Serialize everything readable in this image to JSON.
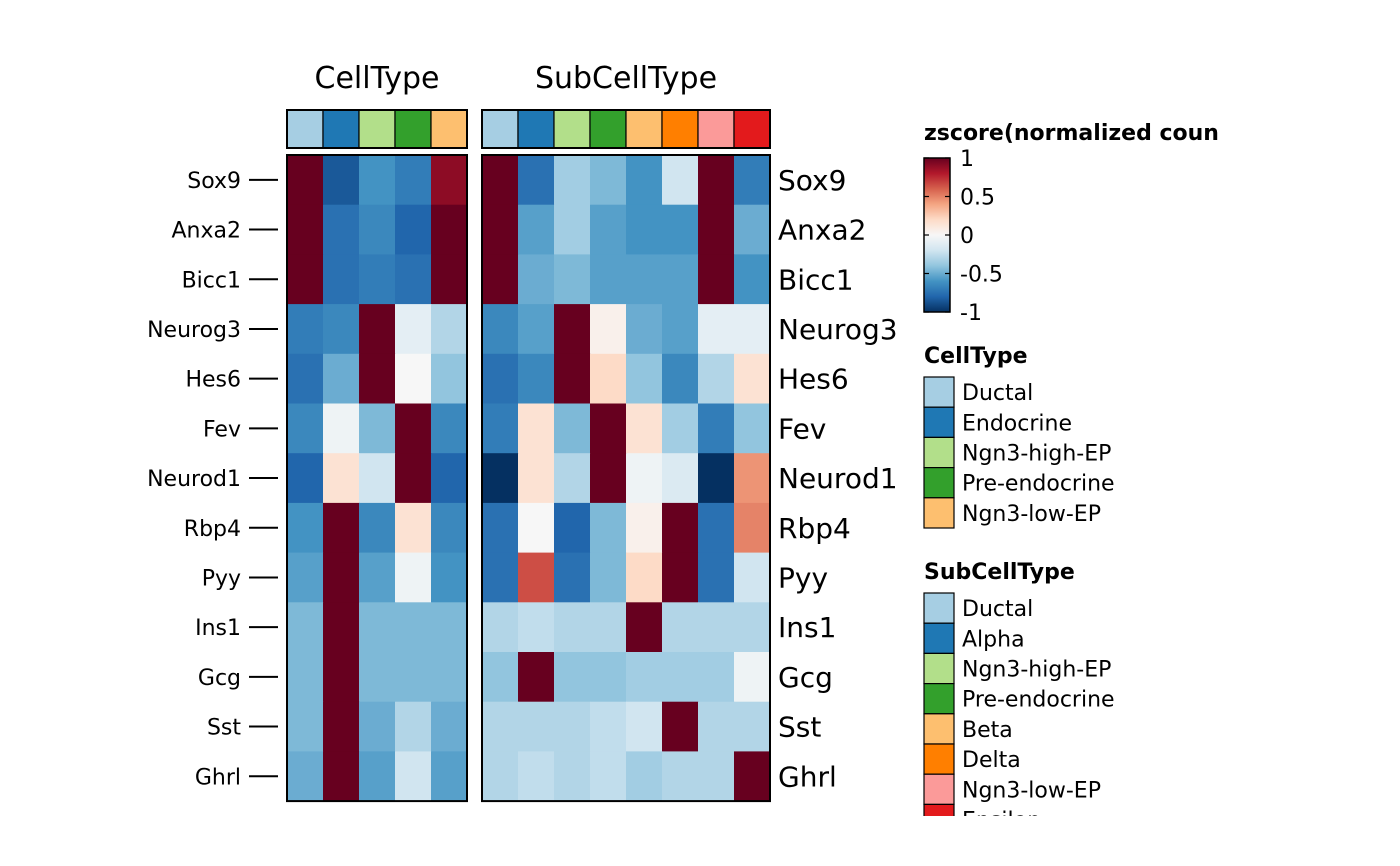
{
  "chart_data": {
    "type": "heatmap",
    "rows": [
      "Sox9",
      "Anxa2",
      "Bicc1",
      "Neurog3",
      "Hes6",
      "Fev",
      "Neurod1",
      "Rbp4",
      "Pyy",
      "Ins1",
      "Gcg",
      "Sst",
      "Ghrl"
    ],
    "panels": [
      {
        "title": "CellType",
        "columns": [
          "Ductal",
          "Endocrine",
          "Ngn3-high-EP",
          "Pre-endocrine",
          "Ngn3-low-EP"
        ],
        "annotation_colors": [
          "#A6CEE3",
          "#1F78B4",
          "#B2DF8A",
          "#33A02C",
          "#FDBF6F"
        ],
        "values": [
          [
            1.0,
            -0.85,
            -0.6,
            -0.7,
            0.9
          ],
          [
            1.0,
            -0.75,
            -0.65,
            -0.8,
            1.0
          ],
          [
            1.0,
            -0.75,
            -0.7,
            -0.75,
            1.0
          ],
          [
            -0.7,
            -0.65,
            1.0,
            -0.1,
            -0.3
          ],
          [
            -0.75,
            -0.5,
            1.0,
            0.0,
            -0.4
          ],
          [
            -0.65,
            -0.05,
            -0.45,
            1.0,
            -0.65
          ],
          [
            -0.8,
            0.15,
            -0.2,
            1.0,
            -0.8
          ],
          [
            -0.6,
            1.0,
            -0.65,
            0.15,
            -0.65
          ],
          [
            -0.55,
            1.0,
            -0.55,
            -0.05,
            -0.6
          ],
          [
            -0.45,
            1.0,
            -0.45,
            -0.45,
            -0.45
          ],
          [
            -0.45,
            1.0,
            -0.45,
            -0.45,
            -0.45
          ],
          [
            -0.45,
            1.0,
            -0.5,
            -0.3,
            -0.5
          ],
          [
            -0.5,
            1.0,
            -0.55,
            -0.2,
            -0.55
          ]
        ]
      },
      {
        "title": "SubCellType",
        "columns": [
          "Ductal",
          "Alpha",
          "Ngn3-high-EP",
          "Pre-endocrine",
          "Beta",
          "Delta",
          "Ngn3-low-EP",
          "Epsilon"
        ],
        "annotation_colors": [
          "#A6CEE3",
          "#1F78B4",
          "#B2DF8A",
          "#33A02C",
          "#FDBF6F",
          "#FF7F00",
          "#FB9A99",
          "#E31A1C"
        ],
        "values": [
          [
            1.0,
            -0.75,
            -0.35,
            -0.45,
            -0.6,
            -0.2,
            1.0,
            -0.7
          ],
          [
            1.0,
            -0.55,
            -0.35,
            -0.55,
            -0.6,
            -0.6,
            1.0,
            -0.5
          ],
          [
            1.0,
            -0.5,
            -0.45,
            -0.55,
            -0.55,
            -0.55,
            1.0,
            -0.6
          ],
          [
            -0.65,
            -0.55,
            1.0,
            0.05,
            -0.5,
            -0.55,
            -0.1,
            -0.1
          ],
          [
            -0.75,
            -0.65,
            1.0,
            0.2,
            -0.4,
            -0.65,
            -0.3,
            0.15
          ],
          [
            -0.7,
            0.15,
            -0.45,
            1.0,
            0.15,
            -0.35,
            -0.7,
            -0.4
          ],
          [
            -1.0,
            0.15,
            -0.3,
            1.0,
            -0.05,
            -0.15,
            -1.0,
            0.45
          ],
          [
            -0.75,
            0.0,
            -0.8,
            -0.45,
            0.05,
            1.0,
            -0.75,
            0.5
          ],
          [
            -0.75,
            0.65,
            -0.75,
            -0.45,
            0.2,
            1.0,
            -0.75,
            -0.2
          ],
          [
            -0.3,
            -0.25,
            -0.3,
            -0.3,
            1.0,
            -0.3,
            -0.3,
            -0.3
          ],
          [
            -0.4,
            1.0,
            -0.4,
            -0.4,
            -0.35,
            -0.35,
            -0.35,
            -0.05
          ],
          [
            -0.3,
            -0.3,
            -0.3,
            -0.25,
            -0.2,
            1.0,
            -0.3,
            -0.3
          ],
          [
            -0.3,
            -0.25,
            -0.3,
            -0.25,
            -0.35,
            -0.3,
            -0.3,
            1.0
          ]
        ]
      }
    ],
    "colorbar": {
      "title": "zscore(normalized coun",
      "range": [
        -1,
        1
      ],
      "ticks": [
        "1",
        "0.5",
        "0",
        "-0.5",
        "-1"
      ],
      "tick_values": [
        1,
        0.5,
        0,
        -0.5,
        -1
      ],
      "colors": [
        "#053061",
        "#2166AC",
        "#4393C3",
        "#92C5DE",
        "#D1E5F0",
        "#F7F7F7",
        "#FDDBC7",
        "#F4A582",
        "#D6604D",
        "#B2182B",
        "#67001F"
      ]
    },
    "legends": [
      {
        "title": "CellType",
        "items": [
          {
            "label": "Ductal",
            "color": "#A6CEE3"
          },
          {
            "label": "Endocrine",
            "color": "#1F78B4"
          },
          {
            "label": "Ngn3-high-EP",
            "color": "#B2DF8A"
          },
          {
            "label": "Pre-endocrine",
            "color": "#33A02C"
          },
          {
            "label": "Ngn3-low-EP",
            "color": "#FDBF6F"
          }
        ]
      },
      {
        "title": "SubCellType",
        "items": [
          {
            "label": "Ductal",
            "color": "#A6CEE3"
          },
          {
            "label": "Alpha",
            "color": "#1F78B4"
          },
          {
            "label": "Ngn3-high-EP",
            "color": "#B2DF8A"
          },
          {
            "label": "Pre-endocrine",
            "color": "#33A02C"
          },
          {
            "label": "Beta",
            "color": "#FDBF6F"
          },
          {
            "label": "Delta",
            "color": "#FF7F00"
          },
          {
            "label": "Ngn3-low-EP",
            "color": "#FB9A99"
          },
          {
            "label": "Epsilon",
            "color": "#E31A1C"
          }
        ]
      }
    ]
  }
}
